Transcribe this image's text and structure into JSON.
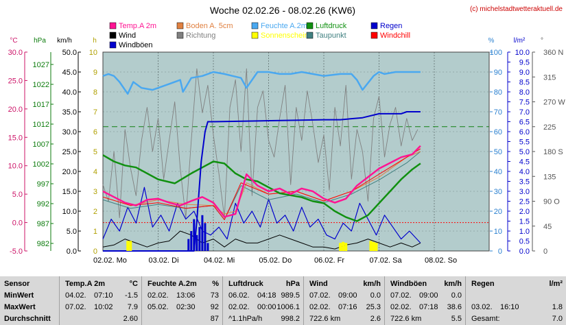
{
  "title": "Woche 02.02.26 - 08.02.26 (KW6)",
  "copyright": "(c) michelstadtwetteraktuell.de",
  "colors": {
    "plot_bg": "#b3cccc",
    "temp": "#ff1493",
    "soil": "#e08040",
    "humidity": "#4aa8f0",
    "pressure": "#109010",
    "rain": "#0000cc",
    "wind": "#000000",
    "direction": "#808080",
    "sun": "#ffff00",
    "dewpoint": "#408080",
    "windchill": "#ff0000",
    "gust": "#0000cc"
  },
  "legend": [
    {
      "label": "Temp.A 2m",
      "color": "#ff1493"
    },
    {
      "label": "Boden A. 5cm",
      "color": "#e08040"
    },
    {
      "label": "Feuchte A.2m",
      "color": "#4aa8f0"
    },
    {
      "label": "Luftdruck",
      "color": "#109010"
    },
    {
      "label": "Regen",
      "color": "#0000cc"
    },
    {
      "label": "Wind",
      "color": "#000000"
    },
    {
      "label": "Richtung",
      "color": "#808080"
    },
    {
      "label": "Sonnenschein",
      "color": "#ffff00"
    },
    {
      "label": "Taupunkt",
      "color": "#408080"
    },
    {
      "label": "Windchill",
      "color": "#ff0000"
    },
    {
      "label": "Windböen",
      "color": "#0000cc"
    }
  ],
  "axis_units": {
    "temp": "°C",
    "pressure": "hPa",
    "wind": "km/h",
    "sun": "h",
    "humidity": "%",
    "rain": "l/m²",
    "direction": "°"
  },
  "chart_data": {
    "type": "line",
    "x_labels": [
      "02.02. Mo",
      "03.02. Di",
      "04.02. Mi",
      "05.02. Do",
      "06.02. Fr",
      "07.02. Sa",
      "08.02. So"
    ],
    "x_range_days": [
      0,
      7
    ],
    "axes": {
      "temp": {
        "ticks": [
          "30.0",
          "25.0",
          "20.0",
          "15.0",
          "10.0",
          "5.0",
          "0.0",
          "-5.0"
        ],
        "range": [
          -5,
          30
        ]
      },
      "pressure": {
        "ticks": [
          "1027",
          "1022",
          "1017",
          "1012",
          "1007",
          "1002",
          "997",
          "992",
          "987",
          "982"
        ],
        "range": [
          982,
          1032
        ]
      },
      "wind": {
        "ticks": [
          "50.0",
          "45.0",
          "40.0",
          "35.0",
          "30.0",
          "25.0",
          "20.0",
          "15.0",
          "10.0",
          "5.0",
          "0.0"
        ],
        "range": [
          0,
          50
        ]
      },
      "sun": {
        "ticks": [
          "10",
          "9",
          "8",
          "7",
          "6",
          "5",
          "4",
          "3",
          "2",
          "1",
          "0"
        ],
        "range": [
          0,
          10
        ]
      },
      "humidity": {
        "ticks": [
          "100",
          "90",
          "80",
          "70",
          "60",
          "50",
          "40",
          "30",
          "20",
          "10",
          "0"
        ],
        "range": [
          0,
          100
        ]
      },
      "rain": {
        "ticks": [
          "10.0",
          "9.5",
          "9.0",
          "8.5",
          "8.0",
          "7.5",
          "7.0",
          "6.5",
          "6.0",
          "5.5",
          "5.0",
          "4.5",
          "4.0",
          "3.5",
          "3.0",
          "2.5",
          "2.0",
          "1.5",
          "1.0",
          "0.5",
          "0.0"
        ],
        "range": [
          0,
          10
        ]
      },
      "direction": {
        "ticks": [
          "360 N",
          "315",
          "270 W",
          "225",
          "180 S",
          "135",
          "90 O",
          "45",
          "0"
        ],
        "range": [
          0,
          360
        ]
      }
    },
    "reference_lines": {
      "pressure_hpa": 1013.25,
      "temp_c": 0
    },
    "series": [
      {
        "name": "Temp.A 2m",
        "axis": "temp",
        "color": "#ff1493",
        "x": [
          0,
          0.2,
          0.4,
          0.6,
          0.8,
          1.0,
          1.2,
          1.4,
          1.6,
          1.8,
          2.0,
          2.2,
          2.4,
          2.6,
          2.8,
          3.0,
          3.2,
          3.4,
          3.6,
          3.8,
          4.0,
          4.2,
          4.4,
          4.6,
          4.8,
          5.0,
          5.2,
          5.4,
          5.6,
          5.75
        ],
        "y": [
          5.5,
          4.5,
          3.5,
          3.0,
          4.0,
          4.2,
          3.5,
          3.0,
          3.8,
          4.5,
          3.5,
          1.0,
          1.5,
          8.5,
          6.5,
          5.5,
          6.0,
          5.0,
          6.0,
          5.5,
          4.2,
          3.5,
          4.2,
          6.5,
          8.0,
          9.5,
          10.5,
          11.5,
          12.0,
          13.5
        ]
      },
      {
        "name": "Boden A. 5cm",
        "axis": "temp",
        "color": "#e08040",
        "x": [
          0,
          0.5,
          1.0,
          1.5,
          2.0,
          2.2,
          2.4,
          2.6,
          3.0,
          3.5,
          4.0,
          4.5,
          5.0,
          5.5,
          5.75
        ],
        "y": [
          4.5,
          3.0,
          4.0,
          3.2,
          3.0,
          1.5,
          2.0,
          7.0,
          5.0,
          5.5,
          3.8,
          5.5,
          8.0,
          11.5,
          12.5
        ]
      },
      {
        "name": "Taupunkt",
        "axis": "temp",
        "color": "#408080",
        "x": [
          0,
          0.5,
          1.0,
          1.5,
          2.0,
          2.2,
          2.5,
          3.0,
          3.5,
          4.0,
          4.5,
          5.0,
          5.5,
          5.75
        ],
        "y": [
          4.0,
          2.5,
          3.2,
          2.5,
          3.0,
          0.5,
          6.5,
          4.0,
          5.0,
          3.5,
          5.0,
          7.5,
          10.5,
          12.5
        ]
      },
      {
        "name": "Windchill",
        "axis": "temp",
        "color": "#ff0000",
        "x": [
          0,
          0.5,
          1.0,
          1.5,
          2.0,
          2.2,
          2.5,
          3.0,
          3.5,
          4.0,
          4.5,
          5.0,
          5.5,
          5.75
        ],
        "y": [
          4.5,
          3.0,
          3.5,
          2.5,
          3.0,
          0.5,
          7.0,
          5.0,
          5.5,
          3.8,
          5.5,
          8.5,
          11.5,
          13.0
        ]
      },
      {
        "name": "Feuchte A.2m",
        "axis": "humidity",
        "color": "#4aa8f0",
        "x": [
          0,
          0.1,
          0.2,
          0.3,
          0.45,
          0.55,
          0.7,
          0.9,
          1.0,
          1.2,
          1.4,
          1.45,
          1.6,
          1.8,
          2.0,
          2.2,
          2.35,
          2.5,
          2.6,
          2.8,
          3.0,
          3.2,
          3.4,
          3.6,
          3.8,
          4.0,
          4.3,
          4.5,
          4.6,
          4.7,
          4.9,
          5.0,
          5.1,
          5.3,
          5.5,
          5.75
        ],
        "y": [
          88,
          89,
          88,
          85,
          79,
          85,
          82,
          81,
          82,
          84,
          86,
          80,
          87,
          88,
          90,
          89,
          88,
          87,
          82,
          90,
          90,
          89,
          89,
          90,
          89,
          88,
          89,
          89,
          86,
          81,
          88,
          90,
          89,
          90,
          90,
          90
        ]
      },
      {
        "name": "Luftdruck",
        "axis": "pressure",
        "color": "#109010",
        "x": [
          0,
          0.2,
          0.4,
          0.6,
          0.8,
          1.0,
          1.3,
          1.6,
          1.8,
          2.0,
          2.2,
          2.4,
          2.6,
          2.8,
          3.0,
          3.2,
          3.4,
          3.6,
          3.8,
          4.0,
          4.2,
          4.4,
          4.6,
          4.8,
          5.0,
          5.2,
          5.4,
          5.6,
          5.75
        ],
        "y": [
          1006.1,
          1004.5,
          1003.5,
          1003,
          1001.5,
          1000,
          999,
          1001.5,
          1003,
          1004.5,
          1004,
          1001.5,
          1000,
          999.5,
          998,
          996.5,
          996,
          995.5,
          994.5,
          994,
          992,
          990.5,
          989.5,
          991,
          994,
          997,
          1000,
          1002.5,
          1004
        ]
      },
      {
        "name": "Regen",
        "axis": "rain",
        "color": "#0000cc",
        "x": [
          0,
          1.65,
          1.7,
          1.78,
          1.85,
          1.9,
          2.0,
          4.0,
          4.3,
          4.7,
          5.0,
          5.4,
          5.5,
          5.75
        ],
        "y": [
          0,
          0,
          1.5,
          4.5,
          6.0,
          6.5,
          6.5,
          6.6,
          6.6,
          6.7,
          6.9,
          6.9,
          7.0,
          7.0
        ]
      },
      {
        "name": "Wind",
        "axis": "wind",
        "color": "#000000",
        "x": [
          0,
          0.2,
          0.4,
          0.6,
          0.8,
          1.0,
          1.2,
          1.4,
          1.6,
          1.8,
          2.0,
          2.2,
          2.4,
          2.6,
          2.8,
          3.0,
          3.2,
          3.4,
          3.6,
          3.8,
          4.0,
          4.2,
          4.4,
          4.6,
          4.8,
          5.0,
          5.2,
          5.4,
          5.6,
          5.75
        ],
        "y": [
          1,
          1.5,
          3,
          2,
          1,
          2,
          2.5,
          5,
          4,
          2,
          3,
          1,
          3,
          2,
          2,
          3,
          4,
          3,
          2,
          1,
          1,
          0.5,
          1.5,
          2,
          3,
          2,
          1,
          2,
          1,
          2
        ]
      },
      {
        "name": "Windböen",
        "axis": "wind",
        "color": "#0000cc",
        "x": [
          0,
          0.15,
          0.3,
          0.45,
          0.6,
          0.75,
          0.9,
          1.05,
          1.2,
          1.35,
          1.5,
          1.65,
          1.8,
          1.95,
          2.1,
          2.25,
          2.4,
          2.55,
          2.7,
          2.85,
          3.0,
          3.15,
          3.3,
          3.45,
          3.6,
          3.75,
          3.9,
          4.05,
          4.2,
          4.35,
          4.5,
          4.65,
          4.8,
          4.95,
          5.1,
          5.25,
          5.4,
          5.55,
          5.75
        ],
        "y": [
          3,
          8,
          5,
          11,
          7,
          16,
          6,
          9,
          5,
          12,
          8,
          10,
          5,
          4,
          6,
          3,
          12,
          7,
          10,
          6,
          13,
          7,
          9,
          5,
          11,
          6,
          8,
          4,
          3,
          7,
          5,
          12,
          8,
          4,
          9,
          6,
          3,
          5,
          2
        ]
      },
      {
        "name": "Richtung",
        "axis": "direction",
        "color": "#808080",
        "x": [
          0,
          0.1,
          0.2,
          0.3,
          0.4,
          0.5,
          0.6,
          0.7,
          0.8,
          0.9,
          1.0,
          1.1,
          1.2,
          1.3,
          1.4,
          1.5,
          1.6,
          1.7,
          1.8,
          1.9,
          2.0,
          2.1,
          2.2,
          2.3,
          2.4,
          2.5,
          2.6,
          2.7,
          2.8,
          2.9,
          3.0,
          3.1,
          3.2,
          3.3,
          3.4,
          3.5,
          3.6,
          3.7,
          3.8,
          3.9,
          4.0,
          4.1,
          4.2,
          4.3,
          4.4,
          4.5,
          4.6,
          4.7,
          4.8,
          4.9,
          5.0,
          5.1,
          5.2,
          5.3,
          5.4,
          5.5,
          5.6,
          5.7
        ],
        "y": [
          120,
          90,
          180,
          60,
          220,
          150,
          100,
          200,
          260,
          180,
          240,
          130,
          200,
          270,
          150,
          60,
          200,
          330,
          250,
          300,
          210,
          140,
          60,
          260,
          310,
          180,
          330,
          100,
          260,
          290,
          200,
          170,
          240,
          300,
          120,
          260,
          200,
          290,
          230,
          160,
          210,
          110,
          260,
          190,
          300,
          130,
          220,
          180,
          90,
          240,
          280,
          170,
          230,
          260,
          190,
          240,
          200,
          220
        ]
      }
    ],
    "sunshine": {
      "axis": "sun",
      "color": "#ffff00",
      "x": [
        0.45,
        0.5,
        4.3,
        4.35,
        4.4,
        4.85,
        4.9,
        4.95
      ],
      "y": [
        0.3,
        0.3,
        0.2,
        0.25,
        0.2,
        0.3,
        0.25,
        0.2
      ]
    },
    "rain_bars": {
      "axis": "wind",
      "color": "#0000cc",
      "x": [
        1.55,
        1.6,
        1.65,
        1.7,
        1.75,
        1.8,
        1.85,
        1.9,
        4.95
      ],
      "y": [
        3,
        5,
        8,
        4,
        6,
        9,
        7,
        2,
        2
      ]
    }
  },
  "stats": {
    "row_labels": [
      "Sensor",
      "MinWert",
      "MaxWert",
      "Durchschnitt"
    ],
    "sections": [
      {
        "name": "Temp.A 2m",
        "unit": "°C",
        "rows": [
          [
            "04.02.",
            "07:10",
            "-1.5"
          ],
          [
            "07.02.",
            "10:02",
            "7.9"
          ],
          [
            "",
            "",
            "2.60"
          ]
        ]
      },
      {
        "name": "Feuchte A.2m",
        "unit": "%",
        "rows": [
          [
            "02.02.",
            "13:06",
            "73"
          ],
          [
            "05.02.",
            "02:30",
            "92"
          ],
          [
            "",
            "",
            "87"
          ]
        ]
      },
      {
        "name": "Luftdruck",
        "unit": "hPa",
        "rows": [
          [
            "06.02.",
            "04:18",
            "989.5"
          ],
          [
            "02.02.",
            "00:00",
            "1006.1"
          ],
          [
            "^1.1hPa/h",
            "",
            "998.2"
          ]
        ]
      },
      {
        "name": "Wind",
        "unit": "km/h",
        "rows": [
          [
            "07.02.",
            "09:00",
            "0.0"
          ],
          [
            "02.02.",
            "07:16",
            "25.3"
          ],
          [
            "722.6 km",
            "",
            "2.6"
          ]
        ]
      },
      {
        "name": "Windböen",
        "unit": "km/h",
        "rows": [
          [
            "07.02.",
            "09:00",
            "0.0"
          ],
          [
            "02.02.",
            "07:18",
            "38.6"
          ],
          [
            "722.6 km",
            "",
            "5.5"
          ]
        ]
      },
      {
        "name": "Regen",
        "unit": "l/m²",
        "rows": [
          [
            "",
            "",
            ""
          ],
          [
            "03.02.",
            "16:10",
            "1.8"
          ],
          [
            "Gesamt:",
            "",
            "7.0"
          ]
        ]
      }
    ]
  }
}
